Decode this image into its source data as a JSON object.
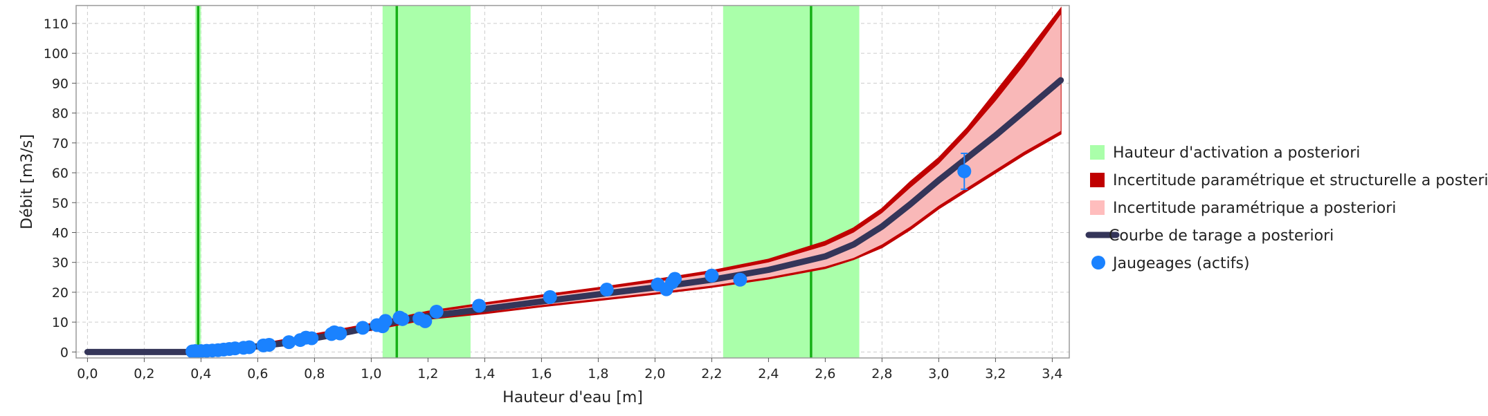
{
  "chart_data": {
    "type": "line",
    "xlabel": "Hauteur d'eau [m]",
    "ylabel": "Débit [m3/s]",
    "xlim": [
      -0.04,
      3.46
    ],
    "ylim": [
      -2,
      116
    ],
    "x_ticks": [
      0.0,
      0.2,
      0.4,
      0.6,
      0.8,
      1.0,
      1.2,
      1.4,
      1.6,
      1.8,
      2.0,
      2.2,
      2.4,
      2.6,
      2.8,
      3.0,
      3.2,
      3.4
    ],
    "x_tick_labels": [
      "0,0",
      "0,2",
      "0,4",
      "0,6",
      "0,8",
      "1,0",
      "1,2",
      "1,4",
      "1,6",
      "1,8",
      "2,0",
      "2,2",
      "2,4",
      "2,6",
      "2,8",
      "3,0",
      "3,2",
      "3,4"
    ],
    "y_ticks": [
      0,
      10,
      20,
      30,
      40,
      50,
      60,
      70,
      80,
      90,
      100,
      110
    ],
    "y_tick_labels": [
      "0",
      "10",
      "20",
      "30",
      "40",
      "50",
      "60",
      "70",
      "80",
      "90",
      "100",
      "110"
    ],
    "grid": true,
    "legend_position": "right",
    "legend": [
      {
        "label": "Hauteur d'activation a posteriori",
        "kind": "square",
        "color": "#aaffaa"
      },
      {
        "label": "Incertitude paramétrique et structurelle a posteriori",
        "kind": "square",
        "color": "#c00000"
      },
      {
        "label": "Incertitude paramétrique a posteriori",
        "kind": "square",
        "color": "#ffbdbd"
      },
      {
        "label": "Courbe de tarage a posteriori",
        "kind": "line",
        "color": "#343559"
      },
      {
        "label": "Jaugeages (actifs)",
        "kind": "circle",
        "color": "#1a82ff"
      }
    ],
    "activation_bands": [
      {
        "x0": 0.38,
        "x1": 0.4,
        "mode": 0.39
      },
      {
        "x0": 1.04,
        "x1": 1.35,
        "mode": 1.09
      },
      {
        "x0": 2.24,
        "x1": 2.72,
        "mode": 2.55
      }
    ],
    "rating_curve": {
      "x": [
        0.0,
        0.36,
        0.4,
        0.5,
        0.6,
        0.7,
        0.8,
        0.9,
        1.0,
        1.1,
        1.2,
        1.3,
        1.4,
        1.6,
        1.8,
        2.0,
        2.2,
        2.4,
        2.6,
        2.7,
        2.8,
        2.9,
        3.0,
        3.1,
        3.2,
        3.3,
        3.43
      ],
      "y": [
        0,
        0,
        0.3,
        1.0,
        1.9,
        3.0,
        4.6,
        6.3,
        8.3,
        10.5,
        12.0,
        13.2,
        14.4,
        16.9,
        19.3,
        21.6,
        24.2,
        27.5,
        32.0,
        36.0,
        42.0,
        49.5,
        57.5,
        65.0,
        72.5,
        80.5,
        91.0
      ]
    },
    "param_uncertainty": {
      "x": [
        0.36,
        0.6,
        1.0,
        1.2,
        1.4,
        1.6,
        1.8,
        2.0,
        2.2,
        2.4,
        2.6,
        2.7,
        2.8,
        2.9,
        3.0,
        3.1,
        3.2,
        3.3,
        3.43
      ],
      "lower": [
        0,
        1.6,
        7.8,
        11.5,
        13.4,
        15.7,
        17.8,
        19.9,
        22.2,
        25.0,
        28.6,
        31.5,
        36.0,
        42.0,
        49.0,
        55.0,
        61.0,
        67.0,
        74.0
      ],
      "upper": [
        0,
        2.2,
        8.8,
        13.0,
        15.8,
        18.3,
        20.8,
        23.4,
        26.3,
        30.0,
        35.6,
        40.0,
        46.5,
        55.0,
        63.0,
        73.0,
        84.0,
        96.0,
        113.0
      ]
    },
    "total_uncertainty": {
      "x": [
        0.36,
        0.6,
        1.0,
        1.2,
        1.4,
        1.6,
        1.8,
        2.0,
        2.2,
        2.4,
        2.6,
        2.7,
        2.8,
        2.9,
        3.0,
        3.1,
        3.2,
        3.3,
        3.43
      ],
      "lower": [
        0,
        1.4,
        7.3,
        11.0,
        12.9,
        15.2,
        17.3,
        19.4,
        21.7,
        24.5,
        28.0,
        31.0,
        35.0,
        41.0,
        48.0,
        54.0,
        60.0,
        66.0,
        73.0
      ],
      "upper": [
        0,
        2.5,
        9.5,
        13.6,
        16.4,
        19.0,
        21.5,
        24.2,
        27.2,
        31.0,
        37.0,
        41.5,
        48.0,
        57.0,
        65.0,
        75.0,
        87.0,
        99.0,
        115.0
      ]
    },
    "gaugings": [
      {
        "x": 0.37,
        "y": 0.2
      },
      {
        "x": 0.38,
        "y": 0.3
      },
      {
        "x": 0.4,
        "y": 0.3
      },
      {
        "x": 0.42,
        "y": 0.4
      },
      {
        "x": 0.44,
        "y": 0.5
      },
      {
        "x": 0.46,
        "y": 0.6
      },
      {
        "x": 0.48,
        "y": 0.8
      },
      {
        "x": 0.5,
        "y": 1.0
      },
      {
        "x": 0.52,
        "y": 1.2
      },
      {
        "x": 0.55,
        "y": 1.4
      },
      {
        "x": 0.57,
        "y": 1.6
      },
      {
        "x": 0.62,
        "y": 2.2
      },
      {
        "x": 0.64,
        "y": 2.4
      },
      {
        "x": 0.71,
        "y": 3.3
      },
      {
        "x": 0.75,
        "y": 4.0
      },
      {
        "x": 0.77,
        "y": 4.8
      },
      {
        "x": 0.79,
        "y": 4.6
      },
      {
        "x": 0.86,
        "y": 6.0
      },
      {
        "x": 0.87,
        "y": 6.6
      },
      {
        "x": 0.89,
        "y": 6.2
      },
      {
        "x": 0.97,
        "y": 8.1
      },
      {
        "x": 1.02,
        "y": 9.0
      },
      {
        "x": 1.04,
        "y": 8.6
      },
      {
        "x": 1.05,
        "y": 10.4
      },
      {
        "x": 1.1,
        "y": 11.5
      },
      {
        "x": 1.11,
        "y": 11.0
      },
      {
        "x": 1.17,
        "y": 11.2
      },
      {
        "x": 1.19,
        "y": 10.3
      },
      {
        "x": 1.23,
        "y": 13.5
      },
      {
        "x": 1.38,
        "y": 15.5
      },
      {
        "x": 1.63,
        "y": 18.4
      },
      {
        "x": 1.83,
        "y": 20.9
      },
      {
        "x": 2.01,
        "y": 22.6
      },
      {
        "x": 2.04,
        "y": 21.0
      },
      {
        "x": 2.06,
        "y": 23.3
      },
      {
        "x": 2.07,
        "y": 24.5
      },
      {
        "x": 2.2,
        "y": 25.6
      },
      {
        "x": 2.3,
        "y": 24.2
      },
      {
        "x": 3.09,
        "y": 60.5,
        "err_low": 54.5,
        "err_high": 66.5
      }
    ]
  }
}
